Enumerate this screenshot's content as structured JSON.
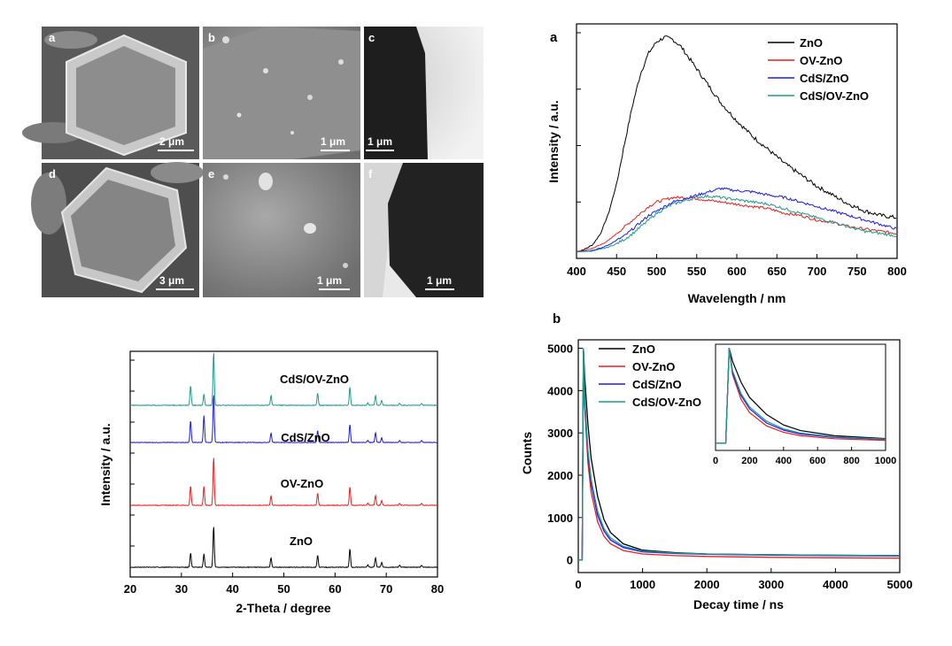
{
  "micrographs": {
    "panels": [
      {
        "letter": "a",
        "scale": "2 μm"
      },
      {
        "letter": "b",
        "scale": "1 μm"
      },
      {
        "letter": "c",
        "scale": "1 μm"
      },
      {
        "letter": "d",
        "scale": "3 μm"
      },
      {
        "letter": "e",
        "scale": "1 μm"
      },
      {
        "letter": "f",
        "scale": "1 μm"
      }
    ]
  },
  "chart_data": [
    {
      "id": "pl",
      "type": "line",
      "panel_label": "a",
      "title": "",
      "xlabel": "Wavelength / nm",
      "ylabel": "Intensity / a.u.",
      "xlim": [
        400,
        800
      ],
      "ylim": [
        0,
        1
      ],
      "xticks": [
        400,
        450,
        500,
        550,
        600,
        650,
        700,
        750,
        800
      ],
      "yticks_unlabeled": [
        0.25,
        0.5,
        0.75,
        1.0
      ],
      "legend_position": "top-right",
      "x": [
        400,
        410,
        420,
        430,
        440,
        450,
        460,
        470,
        480,
        490,
        500,
        510,
        520,
        530,
        540,
        550,
        560,
        570,
        580,
        590,
        600,
        620,
        640,
        660,
        680,
        700,
        720,
        740,
        760,
        780,
        800
      ],
      "series": [
        {
          "name": "ZnO",
          "color": "#000000",
          "values": [
            0.03,
            0.04,
            0.06,
            0.11,
            0.2,
            0.33,
            0.51,
            0.68,
            0.82,
            0.91,
            0.96,
            0.98,
            0.97,
            0.94,
            0.89,
            0.84,
            0.79,
            0.74,
            0.69,
            0.65,
            0.61,
            0.54,
            0.48,
            0.42,
            0.37,
            0.32,
            0.28,
            0.24,
            0.21,
            0.19,
            0.18
          ]
        },
        {
          "name": "OV-ZnO",
          "color": "#ee1c1c",
          "values": [
            0.03,
            0.035,
            0.045,
            0.06,
            0.08,
            0.11,
            0.14,
            0.17,
            0.2,
            0.23,
            0.25,
            0.26,
            0.27,
            0.27,
            0.27,
            0.265,
            0.26,
            0.255,
            0.25,
            0.245,
            0.24,
            0.23,
            0.22,
            0.2,
            0.19,
            0.17,
            0.16,
            0.14,
            0.13,
            0.12,
            0.11
          ]
        },
        {
          "name": "CdS/ZnO",
          "color": "#1a1aee",
          "values": [
            0.03,
            0.032,
            0.036,
            0.045,
            0.06,
            0.08,
            0.1,
            0.13,
            0.16,
            0.19,
            0.21,
            0.23,
            0.25,
            0.26,
            0.27,
            0.28,
            0.29,
            0.3,
            0.31,
            0.305,
            0.3,
            0.295,
            0.28,
            0.27,
            0.25,
            0.23,
            0.21,
            0.19,
            0.17,
            0.15,
            0.13
          ]
        },
        {
          "name": "CdS/OV-ZnO",
          "color": "#1a9b8c",
          "values": [
            0.03,
            0.031,
            0.033,
            0.04,
            0.05,
            0.065,
            0.085,
            0.11,
            0.14,
            0.17,
            0.2,
            0.22,
            0.24,
            0.25,
            0.26,
            0.27,
            0.275,
            0.275,
            0.27,
            0.265,
            0.26,
            0.25,
            0.24,
            0.22,
            0.2,
            0.18,
            0.16,
            0.14,
            0.12,
            0.11,
            0.1
          ]
        }
      ]
    },
    {
      "id": "decay",
      "type": "line",
      "panel_label": "b",
      "title": "",
      "xlabel": "Decay time / ns",
      "ylabel": "Counts",
      "xlim": [
        0,
        5000
      ],
      "ylim": [
        -300,
        5200
      ],
      "xticks": [
        0,
        1000,
        2000,
        3000,
        4000,
        5000
      ],
      "yticks": [
        0,
        1000,
        2000,
        3000,
        4000,
        5000
      ],
      "legend_position": "top-left",
      "x": [
        0,
        60,
        80,
        100,
        150,
        200,
        300,
        400,
        500,
        700,
        1000,
        1500,
        2000,
        3000,
        4000,
        5000
      ],
      "series": [
        {
          "name": "ZnO",
          "color": "#000000",
          "values": [
            0,
            0,
            5000,
            4300,
            3200,
            2400,
            1500,
            950,
            650,
            380,
            230,
            170,
            140,
            120,
            110,
            100
          ]
        },
        {
          "name": "OV-ZnO",
          "color": "#ee1c1c",
          "values": [
            0,
            0,
            5000,
            3600,
            2300,
            1600,
            900,
            560,
            380,
            220,
            140,
            100,
            80,
            60,
            50,
            40
          ]
        },
        {
          "name": "CdS/ZnO",
          "color": "#1a1aee",
          "values": [
            0,
            0,
            5000,
            3700,
            2500,
            1800,
            1050,
            680,
            470,
            290,
            190,
            150,
            130,
            110,
            100,
            90
          ]
        },
        {
          "name": "CdS/OV-ZnO",
          "color": "#1a9b8c",
          "values": [
            0,
            0,
            5000,
            3800,
            2600,
            1900,
            1150,
            740,
            520,
            320,
            210,
            160,
            140,
            120,
            110,
            100
          ]
        }
      ],
      "inset": {
        "xlim": [
          0,
          1000
        ],
        "ylim": [
          -300,
          5200
        ],
        "xticks": [
          0,
          200,
          400,
          600,
          800,
          1000
        ]
      }
    },
    {
      "id": "xrd",
      "type": "line",
      "panel_label": "",
      "title": "",
      "xlabel": "2-Theta / degree",
      "ylabel": "Intensity / a.u.",
      "xlim": [
        20,
        80
      ],
      "xticks": [
        20,
        30,
        40,
        50,
        60,
        70,
        80
      ],
      "peaks": [
        {
          "pos": 31.8,
          "rel": 0.45
        },
        {
          "pos": 34.4,
          "rel": 0.33
        },
        {
          "pos": 36.3,
          "rel": 1.0
        },
        {
          "pos": 47.5,
          "rel": 0.2
        },
        {
          "pos": 56.6,
          "rel": 0.25
        },
        {
          "pos": 62.9,
          "rel": 0.38
        },
        {
          "pos": 66.4,
          "rel": 0.05
        },
        {
          "pos": 67.9,
          "rel": 0.2
        },
        {
          "pos": 69.1,
          "rel": 0.1
        },
        {
          "pos": 72.6,
          "rel": 0.04
        },
        {
          "pos": 76.9,
          "rel": 0.04
        }
      ],
      "series": [
        {
          "name": "ZnO",
          "color": "#000000",
          "peak_scale": [
            0.65,
            0.85,
            0.85,
            1,
            1,
            1,
            1,
            1,
            1,
            1,
            1
          ]
        },
        {
          "name": "OV-ZnO",
          "color": "#ee1c1c",
          "peak_scale": [
            0.9,
            1.2,
            1,
            1,
            1,
            1,
            1,
            1,
            1,
            1,
            1
          ]
        },
        {
          "name": "CdS/ZnO",
          "color": "#1a1aee",
          "peak_scale": [
            1,
            1.7,
            1,
            1,
            1,
            1,
            1,
            1,
            1,
            1,
            1
          ]
        },
        {
          "name": "CdS/OV-ZnO",
          "color": "#1a9b8c",
          "peak_scale": [
            0.9,
            0.7,
            1.1,
            1,
            1,
            1,
            1,
            1,
            1,
            1,
            1
          ]
        }
      ]
    }
  ]
}
